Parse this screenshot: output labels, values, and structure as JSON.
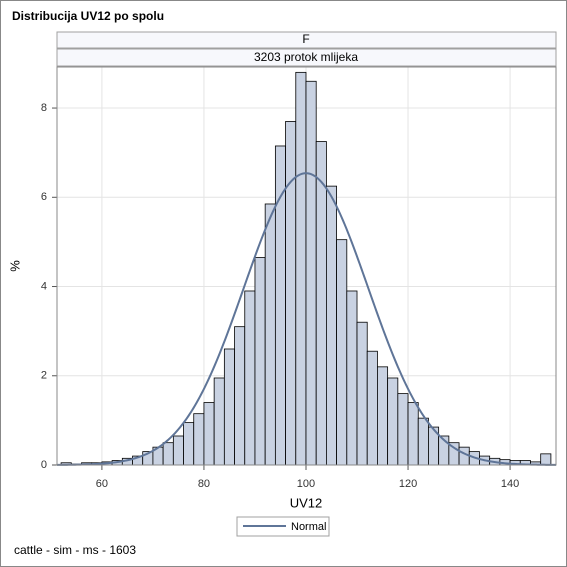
{
  "chart_data": {
    "type": "histogram",
    "title": "Distribucija UV12 po spolu",
    "panel_labels": [
      "F",
      "3203 protok mlijeka"
    ],
    "x_label": "UV12",
    "y_label": "%",
    "footnote": "cattle - sim - ms - 1603",
    "bins": [
      52,
      54,
      56,
      58,
      60,
      62,
      64,
      66,
      68,
      70,
      72,
      74,
      76,
      78,
      80,
      82,
      84,
      86,
      88,
      90,
      92,
      94,
      96,
      98,
      100,
      102,
      104,
      106,
      108,
      110,
      112,
      114,
      116,
      118,
      120,
      122,
      124,
      126,
      128,
      130,
      132,
      134,
      136,
      138,
      140,
      142,
      144,
      146,
      148
    ],
    "values": [
      0.05,
      0.02,
      0.05,
      0.05,
      0.07,
      0.1,
      0.15,
      0.2,
      0.3,
      0.4,
      0.5,
      0.65,
      0.95,
      1.15,
      1.4,
      1.95,
      2.6,
      3.1,
      3.9,
      4.65,
      5.85,
      7.15,
      7.7,
      8.8,
      8.6,
      7.25,
      6.25,
      5.05,
      3.9,
      3.2,
      2.55,
      2.2,
      1.95,
      1.6,
      1.4,
      1.05,
      0.85,
      0.65,
      0.5,
      0.4,
      0.3,
      0.2,
      0.15,
      0.12,
      0.1,
      0.1,
      0.07,
      0.25
    ],
    "color": "#c9d2e2",
    "normal": {
      "name": "Normal",
      "mean": 100,
      "std": 12.2,
      "color": "#5f7598"
    },
    "xlim": [
      51.2,
      149
    ],
    "ylim": [
      0,
      8.92
    ],
    "xticks": [
      60,
      80,
      100,
      120,
      140
    ],
    "yticks": [
      0,
      2,
      4,
      6,
      8
    ],
    "grid": true
  }
}
